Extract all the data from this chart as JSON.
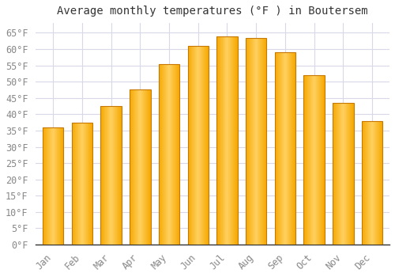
{
  "title": "Average monthly temperatures (°F ) in Boutersem",
  "months": [
    "Jan",
    "Feb",
    "Mar",
    "Apr",
    "May",
    "Jun",
    "Jul",
    "Aug",
    "Sep",
    "Oct",
    "Nov",
    "Dec"
  ],
  "values": [
    36,
    37.5,
    42.5,
    47.5,
    55.5,
    61,
    64,
    63.5,
    59,
    52,
    43.5,
    38
  ],
  "bar_color_center": "#FFD060",
  "bar_color_edge": "#F5A800",
  "bar_outline_color": "#C87800",
  "ylim": [
    0,
    68
  ],
  "yticks": [
    0,
    5,
    10,
    15,
    20,
    25,
    30,
    35,
    40,
    45,
    50,
    55,
    60,
    65
  ],
  "background_color": "#ffffff",
  "plot_bg_color": "#ffffff",
  "grid_color": "#d8d8e8",
  "title_fontsize": 10,
  "tick_fontsize": 8.5,
  "font_family": "monospace",
  "tick_color": "#888888"
}
